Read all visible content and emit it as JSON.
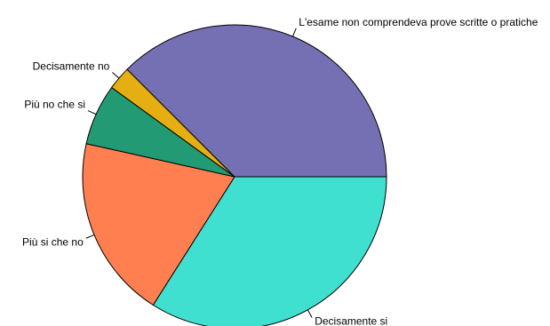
{
  "chart_data": {
    "type": "pie",
    "title": "",
    "start_angle_deg": 0,
    "direction": "clockwise",
    "slices": [
      {
        "label": "Decisamente si",
        "value": 34,
        "color": "#40E0D0"
      },
      {
        "label": "Più si che no",
        "value": 19.5,
        "color": "#FF7F50"
      },
      {
        "label": "Più no che si",
        "value": 6.5,
        "color": "#229A74"
      },
      {
        "label": "Decisamente no",
        "value": 2.5,
        "color": "#E5AE13"
      },
      {
        "label": "L'esame non comprendeva prove scritte o pratiche",
        "value": 37.5,
        "color": "#7570B3"
      }
    ]
  }
}
